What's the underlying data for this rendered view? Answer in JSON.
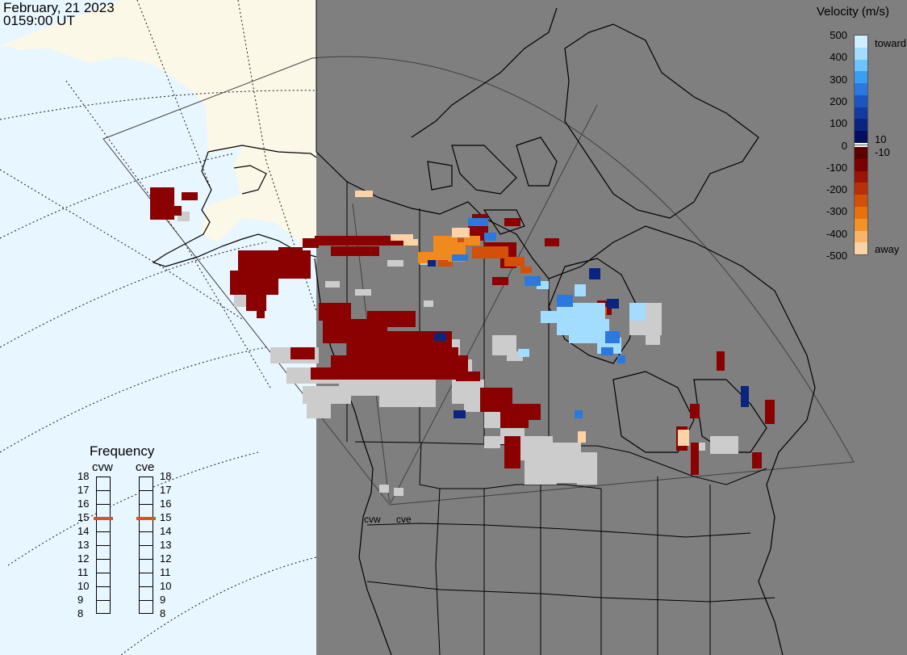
{
  "header": {
    "date": "February, 21 2023",
    "time": "0159:00 UT"
  },
  "colorbar": {
    "title": "Velocity (m/s)",
    "ticks": [
      "500",
      "400",
      "300",
      "200",
      "100",
      "0",
      "-100",
      "-200",
      "-300",
      "-400",
      "-500"
    ],
    "label_10": "10",
    "label_neg10": "-10",
    "toward_label": "toward",
    "away_label": "away",
    "colors_toward": [
      "#cfeeff",
      "#a2dcff",
      "#6cc4ff",
      "#3a9ef2",
      "#2a78e0",
      "#1a55c0",
      "#133a9e",
      "#0b2480",
      "#050f62"
    ],
    "colors_away": [
      "#5a0000",
      "#7a0000",
      "#9a1405",
      "#b83008",
      "#d2500a",
      "#e8700e",
      "#f49226",
      "#f9b468",
      "#fbd3a6"
    ]
  },
  "frequency_panel": {
    "title": "Frequency",
    "radars": [
      "cvw",
      "cve"
    ],
    "levels": [
      "18",
      "17",
      "16",
      "15",
      "14",
      "13",
      "12",
      "11",
      "10",
      "9",
      "8"
    ],
    "current": {
      "cvw": 15,
      "cve": 15
    },
    "indicator_color": "#d9541e"
  },
  "map": {
    "radar_labels": [
      "cvw",
      "cve"
    ],
    "colors": {
      "ocean": "#e8f6ff",
      "land_sunlit": "#fbf8e8",
      "night": "#7f7f7f",
      "ground_scatter": "#cccccc",
      "coast": "#000000"
    }
  }
}
